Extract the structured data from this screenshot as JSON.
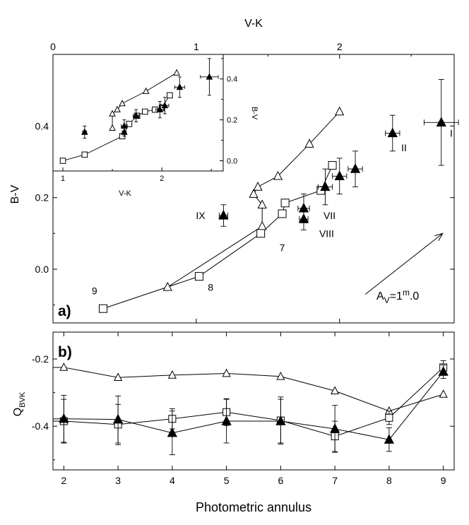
{
  "chart_data": [
    {
      "id": "a",
      "type": "scatter",
      "panel_label": "a)",
      "xlabel": "V-K",
      "ylabel": "B-V",
      "xlim": [
        0,
        2.8
      ],
      "ylim": [
        -0.15,
        0.6
      ],
      "xticks": [
        0,
        1,
        2
      ],
      "yticks": [
        0.0,
        0.2,
        0.4
      ],
      "ytick_labels": [
        "0.0",
        "0.2",
        "0.4"
      ],
      "series": [
        {
          "name": "open-triangles",
          "marker": "open-triangle",
          "connected": true,
          "points": [
            [
              0.8,
              -0.05
            ],
            [
              1.46,
              0.12
            ],
            [
              1.46,
              0.18
            ],
            [
              1.4,
              0.21
            ],
            [
              1.43,
              0.23
            ],
            [
              1.57,
              0.26
            ],
            [
              1.79,
              0.35
            ],
            [
              2.0,
              0.44
            ]
          ]
        },
        {
          "name": "open-squares",
          "marker": "open-square",
          "connected": true,
          "points": [
            [
              0.35,
              -0.11
            ],
            [
              1.02,
              -0.02
            ],
            [
              1.45,
              0.1
            ],
            [
              1.6,
              0.155
            ],
            [
              1.62,
              0.185
            ],
            [
              1.87,
              0.22
            ],
            [
              1.95,
              0.29
            ]
          ]
        },
        {
          "name": "filled-triangles",
          "marker": "filled-triangle",
          "connected": false,
          "points": [
            [
              1.19,
              0.15,
              0.03,
              0.03
            ],
            [
              1.75,
              0.14,
              0.03,
              0.03
            ],
            [
              1.75,
              0.17,
              0.04,
              0.04
            ],
            [
              1.9,
              0.23,
              0.05,
              0.05
            ],
            [
              2.0,
              0.26,
              0.05,
              0.05
            ],
            [
              2.11,
              0.28,
              0.05,
              0.05
            ],
            [
              2.37,
              0.38,
              0.05,
              0.05
            ],
            [
              2.71,
              0.41,
              0.12,
              0.12
            ]
          ]
        }
      ],
      "annotations": [
        {
          "text": "9",
          "x": 0.29,
          "y": -0.07
        },
        {
          "text": "8",
          "x": 1.1,
          "y": -0.06
        },
        {
          "text": "7",
          "x": 1.6,
          "y": 0.05
        },
        {
          "text": "VIII",
          "x": 1.91,
          "y": 0.09
        },
        {
          "text": "VII",
          "x": 1.93,
          "y": 0.14
        },
        {
          "text": "IX",
          "x": 1.03,
          "y": 0.14
        },
        {
          "text": "II",
          "x": 2.45,
          "y": 0.33
        },
        {
          "text": "I",
          "x": 2.78,
          "y": 0.37
        }
      ],
      "extinction_label": {
        "prefix": "A",
        "subscript": "V",
        "mid": "=1",
        "superscript": "m",
        "suffix": ".0"
      },
      "extinction_vector": {
        "from": [
          2.18,
          -0.07
        ],
        "to": [
          2.72,
          0.1
        ]
      }
    },
    {
      "id": "a-inset",
      "type": "scatter",
      "xlabel": "V-K",
      "ylabel": "B-V",
      "xlim": [
        0.9,
        2.62
      ],
      "ylim": [
        -0.05,
        0.52
      ],
      "xticks": [
        1,
        2
      ],
      "yticks": [
        0.0,
        0.2,
        0.4
      ],
      "ytick_labels": [
        "0.0",
        "0.2",
        "0.4"
      ],
      "series": [
        {
          "name": "open-triangles",
          "marker": "open-triangle",
          "connected": true,
          "points": [
            [
              1.5,
              0.16
            ],
            [
              1.5,
              0.23
            ],
            [
              1.55,
              0.25
            ],
            [
              1.6,
              0.28
            ],
            [
              1.84,
              0.34
            ],
            [
              2.15,
              0.43
            ]
          ]
        },
        {
          "name": "open-squares",
          "marker": "open-square",
          "connected": true,
          "points": [
            [
              1.0,
              0.0
            ],
            [
              1.22,
              0.03
            ],
            [
              1.6,
              0.12
            ],
            [
              1.67,
              0.18
            ],
            [
              1.75,
              0.22
            ],
            [
              1.83,
              0.24
            ],
            [
              1.93,
              0.25
            ],
            [
              2.0,
              0.26
            ],
            [
              2.08,
              0.32
            ]
          ]
        },
        {
          "name": "filled-triangles",
          "marker": "filled-triangle",
          "connected": false,
          "points": [
            [
              1.22,
              0.14,
              0.03,
              0.02
            ],
            [
              1.62,
              0.14,
              0.02,
              0.02
            ],
            [
              1.62,
              0.17,
              0.03,
              0.03
            ],
            [
              1.74,
              0.22,
              0.03,
              0.03
            ],
            [
              1.98,
              0.25,
              0.04,
              0.04
            ],
            [
              2.03,
              0.27,
              0.04,
              0.04
            ],
            [
              2.18,
              0.36,
              0.05,
              0.05
            ],
            [
              2.48,
              0.41,
              0.09,
              0.09
            ]
          ]
        }
      ]
    },
    {
      "id": "b",
      "type": "line",
      "panel_label": "b)",
      "xlabel": "Photometric annulus",
      "ylabel": "Q",
      "ylabel_subscript": "BVK",
      "xlim": [
        1.8,
        9.2
      ],
      "ylim": [
        -0.53,
        -0.12
      ],
      "xticks": [
        2,
        3,
        4,
        5,
        6,
        7,
        8,
        9
      ],
      "yticks": [
        -0.4,
        -0.2
      ],
      "ytick_labels": [
        "-0.4",
        "-0.2"
      ],
      "series": [
        {
          "name": "open-triangles",
          "marker": "open-triangle",
          "x": [
            2,
            3,
            4,
            5,
            6,
            7,
            8,
            9
          ],
          "y": [
            -0.225,
            -0.255,
            -0.248,
            -0.243,
            -0.252,
            -0.295,
            -0.355,
            -0.305
          ]
        },
        {
          "name": "open-squares",
          "marker": "open-square",
          "x": [
            2,
            3,
            4,
            5,
            6,
            7,
            8,
            9
          ],
          "y": [
            -0.385,
            -0.395,
            -0.378,
            -0.358,
            -0.383,
            -0.43,
            -0.375,
            -0.225
          ],
          "err": [
            0.065,
            0.06,
            0.03,
            0.04,
            0.07,
            0.045,
            0.02,
            0.02
          ]
        },
        {
          "name": "filled-triangles",
          "marker": "filled-triangle",
          "x": [
            2,
            3,
            4,
            5,
            6,
            7,
            8,
            9
          ],
          "y": [
            -0.378,
            -0.38,
            -0.42,
            -0.385,
            -0.385,
            -0.408,
            -0.44,
            -0.238
          ],
          "err": [
            0.07,
            0.07,
            0.065,
            0.065,
            0.065,
            0.07,
            0.035,
            0.02
          ]
        }
      ]
    }
  ]
}
